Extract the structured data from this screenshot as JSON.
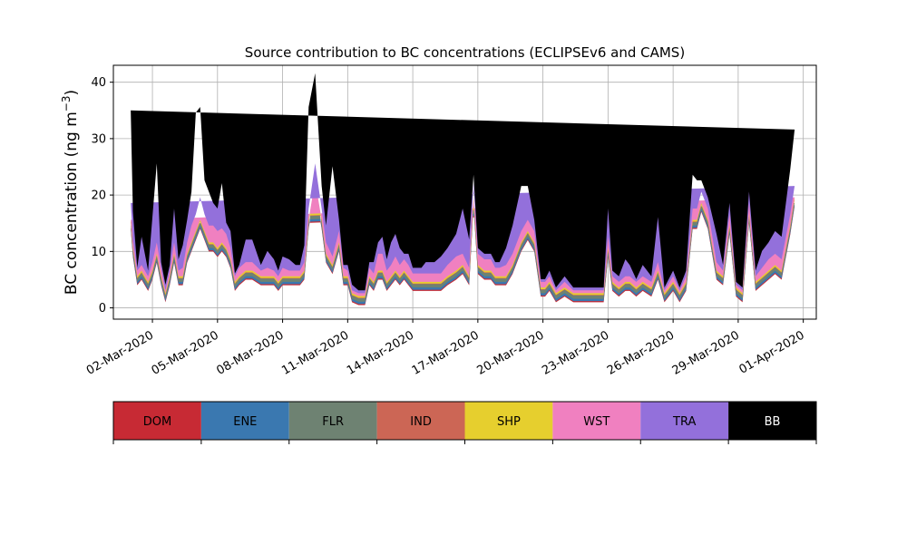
{
  "chart_data": {
    "type": "area",
    "stacked": true,
    "title": "Source contribution to BC concentrations (ECLIPSEv6 and CAMS)",
    "ylabel_main": "BC concentration (ng m",
    "ylabel_sup": "−3",
    "ylabel_close": ")",
    "ylim": [
      -2,
      43
    ],
    "yticks": [
      0,
      10,
      20,
      30,
      40
    ],
    "xlim_day": [
      -0.8,
      31.6
    ],
    "grid": true,
    "xtick_labels": [
      {
        "day": 1,
        "label": "02-Mar-2020"
      },
      {
        "day": 4,
        "label": "05-Mar-2020"
      },
      {
        "day": 7,
        "label": "08-Mar-2020"
      },
      {
        "day": 10,
        "label": "11-Mar-2020"
      },
      {
        "day": 13,
        "label": "14-Mar-2020"
      },
      {
        "day": 16,
        "label": "17-Mar-2020"
      },
      {
        "day": 19,
        "label": "20-Mar-2020"
      },
      {
        "day": 22,
        "label": "23-Mar-2020"
      },
      {
        "day": 25,
        "label": "26-Mar-2020"
      },
      {
        "day": 28,
        "label": "29-Mar-2020"
      },
      {
        "day": 31,
        "label": "01-Apr-2020"
      }
    ],
    "x_day": [
      0.0,
      0.1,
      0.3,
      0.5,
      0.8,
      1.0,
      1.2,
      1.4,
      1.6,
      1.8,
      2.0,
      2.2,
      2.4,
      2.6,
      2.8,
      3.0,
      3.2,
      3.4,
      3.6,
      3.8,
      4.0,
      4.2,
      4.4,
      4.6,
      4.8,
      5.0,
      5.3,
      5.6,
      6.0,
      6.3,
      6.6,
      6.8,
      7.0,
      7.3,
      7.6,
      7.8,
      8.0,
      8.2,
      8.5,
      8.8,
      9.0,
      9.3,
      9.6,
      9.8,
      10.0,
      10.2,
      10.5,
      10.8,
      11.0,
      11.2,
      11.4,
      11.6,
      11.8,
      12.0,
      12.2,
      12.4,
      12.6,
      12.8,
      13.0,
      13.2,
      13.4,
      13.6,
      13.8,
      14.0,
      14.3,
      14.6,
      15.0,
      15.3,
      15.6,
      15.8,
      16.0,
      16.3,
      16.6,
      16.8,
      17.0,
      17.3,
      17.6,
      18.0,
      18.3,
      18.6,
      18.9,
      19.1,
      19.3,
      19.6,
      20.0,
      20.4,
      20.8,
      21.2,
      21.5,
      21.8,
      22.0,
      22.2,
      22.5,
      22.8,
      23.0,
      23.3,
      23.6,
      24.0,
      24.3,
      24.6,
      25.0,
      25.3,
      25.6,
      25.9,
      26.1,
      26.3,
      26.6,
      27.0,
      27.3,
      27.6,
      27.9,
      28.2,
      28.5,
      28.8,
      29.1,
      29.4,
      29.7,
      30.0,
      30.2,
      30.4,
      30.6,
      30.8,
      31.0
    ],
    "series": [
      {
        "name": "DOM",
        "color": "#c72a34",
        "values": [
          14,
          9,
          4,
          5,
          3,
          5,
          8,
          4,
          1,
          4,
          8,
          4,
          4,
          8,
          10,
          12,
          14,
          12,
          10,
          10,
          9,
          10,
          9,
          7,
          3,
          4,
          5,
          5,
          4,
          4,
          4,
          3,
          4,
          4,
          4,
          4,
          5,
          14,
          21,
          14,
          8,
          6,
          10,
          4,
          4,
          1,
          0.5,
          0.5,
          4,
          3,
          5,
          5,
          3,
          4,
          5,
          4,
          5,
          4,
          3,
          3,
          3,
          3,
          3,
          3,
          3,
          4,
          5,
          6,
          4,
          18,
          6,
          5,
          5,
          4,
          4,
          4,
          6,
          10,
          12,
          10,
          2,
          2,
          3,
          1,
          2,
          1,
          1,
          1,
          1,
          1,
          9,
          3,
          2,
          3,
          3,
          2,
          3,
          2,
          5,
          1,
          3,
          1,
          3,
          14,
          14,
          17,
          14,
          5,
          4,
          13,
          2,
          1,
          15,
          3,
          4,
          5,
          6,
          5,
          9,
          13,
          18
        ]
      },
      {
        "name": "ENE",
        "color": "#3a78b0",
        "values": [
          0.2,
          0.2,
          0.2,
          0.2,
          0.2,
          0.2,
          0.2,
          0.2,
          0.2,
          0.2,
          0.2,
          0.2,
          0.2,
          0.2,
          0.2,
          0.2,
          0.2,
          0.2,
          0.2,
          0.2,
          0.2,
          0.2,
          0.2,
          0.2,
          0.2,
          0.2,
          0.2,
          0.2,
          0.2,
          0.2,
          0.2,
          0.2,
          0.2,
          0.2,
          0.2,
          0.2,
          0.2,
          0.2,
          0.2,
          0.2,
          0.2,
          0.2,
          0.2,
          0.2,
          0.2,
          0.2,
          0.2,
          0.2,
          0.2,
          0.2,
          0.2,
          0.2,
          0.2,
          0.2,
          0.2,
          0.2,
          0.2,
          0.2,
          0.2,
          0.2,
          0.2,
          0.2,
          0.2,
          0.2,
          0.2,
          0.2,
          0.2,
          0.2,
          0.2,
          0.2,
          0.2,
          0.2,
          0.2,
          0.2,
          0.2,
          0.2,
          0.2,
          0.2,
          0.2,
          0.2,
          0.2,
          0.2,
          0.2,
          0.2,
          0.2,
          0.2,
          0.2,
          0.2,
          0.2,
          0.2,
          0.2,
          0.2,
          0.2,
          0.2,
          0.2,
          0.2,
          0.2,
          0.2,
          0.2,
          0.2,
          0.2,
          0.2,
          0.2,
          0.2,
          0.2,
          0.2,
          0.2,
          0.2,
          0.2,
          0.2,
          0.2,
          0.2,
          0.2,
          0.2,
          0.2,
          0.2,
          0.2,
          0.2,
          0.2,
          0.2,
          0.2
        ]
      },
      {
        "name": "FLR",
        "color": "#6e8272",
        "values": [
          0.4,
          0.4,
          0.4,
          0.4,
          0.4,
          0.4,
          0.4,
          0.4,
          0.4,
          0.4,
          0.4,
          0.4,
          0.4,
          0.4,
          0.4,
          0.4,
          0.4,
          0.4,
          0.4,
          0.4,
          0.4,
          0.4,
          0.4,
          0.4,
          0.4,
          0.4,
          0.4,
          0.4,
          0.4,
          0.4,
          0.4,
          0.4,
          0.4,
          0.4,
          0.4,
          0.4,
          0.4,
          0.4,
          0.4,
          0.4,
          0.4,
          0.4,
          0.4,
          0.4,
          0.4,
          0.4,
          0.4,
          0.4,
          0.4,
          0.4,
          0.4,
          0.4,
          0.4,
          0.4,
          0.4,
          0.4,
          0.4,
          0.4,
          0.4,
          0.4,
          0.4,
          0.4,
          0.4,
          0.4,
          0.4,
          0.4,
          0.4,
          0.4,
          0.4,
          0.4,
          0.4,
          0.4,
          0.4,
          0.4,
          0.4,
          0.4,
          0.4,
          0.4,
          0.4,
          0.4,
          0.4,
          0.4,
          0.4,
          0.4,
          0.4,
          0.4,
          0.4,
          0.4,
          0.4,
          0.4,
          0.4,
          0.4,
          0.4,
          0.4,
          0.4,
          0.4,
          0.4,
          0.4,
          0.4,
          0.4,
          0.4,
          0.4,
          0.4,
          0.4,
          0.4,
          0.4,
          0.4,
          0.4,
          0.4,
          0.4,
          0.4,
          0.4,
          0.4,
          0.4,
          0.4,
          0.4,
          0.4,
          0.4,
          0.4,
          0.4,
          0.4
        ]
      },
      {
        "name": "IND",
        "color": "#cc6655",
        "values": [
          0.6,
          0.6,
          0.6,
          0.6,
          0.6,
          0.6,
          0.6,
          0.6,
          0.6,
          0.6,
          0.6,
          0.6,
          0.6,
          0.6,
          0.6,
          0.6,
          0.6,
          0.6,
          0.6,
          0.6,
          0.6,
          0.6,
          0.6,
          0.6,
          0.6,
          0.6,
          0.6,
          0.6,
          0.6,
          0.6,
          0.6,
          0.6,
          0.6,
          0.6,
          0.6,
          0.6,
          0.6,
          0.6,
          0.6,
          0.6,
          0.6,
          0.6,
          0.6,
          0.6,
          0.6,
          0.6,
          0.6,
          0.6,
          0.6,
          0.6,
          0.6,
          0.6,
          0.6,
          0.6,
          0.6,
          0.6,
          0.6,
          0.6,
          0.6,
          0.6,
          0.6,
          0.6,
          0.6,
          0.6,
          0.6,
          0.6,
          0.6,
          0.6,
          0.6,
          0.6,
          0.6,
          0.6,
          0.6,
          0.6,
          0.6,
          0.6,
          0.6,
          0.6,
          0.6,
          0.6,
          0.6,
          0.6,
          0.6,
          0.6,
          0.6,
          0.6,
          0.6,
          0.6,
          0.6,
          0.6,
          0.6,
          0.6,
          0.6,
          0.6,
          0.6,
          0.6,
          0.6,
          0.6,
          0.6,
          0.6,
          0.6,
          0.6,
          0.6,
          0.6,
          0.6,
          0.6,
          0.6,
          0.6,
          0.6,
          0.6,
          0.6,
          0.6,
          0.6,
          0.6,
          0.6,
          0.6,
          0.6,
          0.6,
          0.6,
          0.6,
          0.6
        ]
      },
      {
        "name": "SHP",
        "color": "#e6cf2e",
        "values": [
          0.1,
          0.1,
          0.1,
          0.1,
          0.1,
          0.1,
          0.1,
          0.1,
          0.1,
          0.1,
          0.1,
          0.1,
          0.1,
          0.1,
          0.1,
          0.1,
          0.1,
          0.1,
          0.1,
          0.1,
          0.1,
          0.1,
          0.1,
          0.1,
          0.1,
          0.1,
          0.1,
          0.1,
          0.1,
          0.1,
          0.1,
          0.1,
          0.1,
          0.1,
          0.1,
          0.1,
          0.1,
          0.1,
          0.1,
          0.1,
          0.1,
          0.1,
          0.1,
          0.1,
          0.1,
          0.1,
          0.1,
          0.1,
          0.1,
          0.1,
          0.1,
          0.1,
          0.1,
          0.1,
          0.1,
          0.1,
          0.1,
          0.1,
          0.1,
          0.1,
          0.1,
          0.1,
          0.1,
          0.1,
          0.1,
          0.1,
          0.1,
          0.1,
          0.1,
          0.1,
          0.1,
          0.1,
          0.1,
          0.1,
          0.1,
          0.1,
          0.1,
          0.1,
          0.1,
          0.1,
          0.1,
          0.1,
          0.1,
          0.1,
          0.1,
          0.1,
          0.1,
          0.1,
          0.1,
          0.1,
          0.1,
          0.1,
          0.1,
          0.1,
          0.1,
          0.1,
          0.1,
          0.1,
          0.1,
          0.1,
          0.1,
          0.1,
          0.1,
          0.1,
          0.1,
          0.1,
          0.1,
          0.1,
          0.1,
          0.1,
          0.1,
          0.1,
          0.1,
          0.1,
          0.1,
          0.1,
          0.1,
          0.1,
          0.1,
          0.1,
          0.1
        ]
      },
      {
        "name": "WST",
        "color": "#f080c0",
        "values": [
          0.3,
          0.3,
          0.3,
          0.3,
          0.3,
          0.3,
          0.3,
          0.3,
          0.3,
          0.3,
          0.3,
          0.3,
          0.3,
          0.3,
          0.3,
          0.3,
          0.3,
          0.3,
          0.3,
          0.3,
          0.3,
          0.3,
          0.3,
          0.3,
          0.3,
          0.3,
          0.3,
          0.3,
          0.3,
          0.3,
          0.3,
          0.3,
          0.3,
          0.3,
          0.3,
          0.3,
          0.3,
          0.3,
          0.3,
          0.3,
          0.3,
          0.3,
          0.3,
          0.3,
          0.3,
          0.3,
          0.3,
          0.3,
          0.3,
          0.3,
          0.3,
          0.3,
          0.3,
          0.3,
          0.3,
          0.3,
          0.3,
          0.3,
          0.3,
          0.3,
          0.3,
          0.3,
          0.3,
          0.3,
          0.3,
          0.3,
          0.3,
          0.3,
          0.3,
          0.3,
          0.3,
          0.3,
          0.3,
          0.3,
          0.3,
          0.3,
          0.3,
          0.3,
          0.3,
          0.3,
          0.3,
          0.3,
          0.3,
          0.3,
          0.3,
          0.3,
          0.3,
          0.3,
          0.3,
          0.3,
          0.3,
          0.3,
          0.3,
          0.3,
          0.3,
          0.3,
          0.3,
          0.3,
          0.3,
          0.3,
          0.3,
          0.3,
          0.3,
          0.3,
          0.3,
          0.3,
          0.3,
          0.3,
          0.3,
          0.3,
          0.3,
          0.3,
          0.3,
          0.3,
          0.3,
          0.3,
          0.3,
          0.3,
          0.3,
          0.3,
          0.3
        ]
      },
      {
        "name": "TRA",
        "color": "#9370db",
        "values": [
          3,
          1.5,
          1,
          1,
          1,
          1.5,
          2,
          1.5,
          0.5,
          1,
          2,
          1,
          1.5,
          2,
          3,
          3,
          4,
          3,
          3,
          3,
          3,
          2.5,
          2.5,
          2,
          1,
          1.5,
          1.5,
          1.5,
          1,
          1.5,
          1,
          1,
          1.5,
          1,
          1,
          1,
          1.5,
          2,
          3,
          2,
          2,
          1.5,
          2,
          1.5,
          1,
          0.5,
          0.5,
          0.5,
          1.5,
          1.5,
          3,
          3,
          2,
          2,
          2.5,
          2,
          2,
          2,
          1.5,
          1.5,
          1.5,
          1.5,
          1.5,
          1.5,
          1.5,
          2,
          2.5,
          2,
          1.5,
          2.5,
          2,
          2,
          2,
          1.5,
          1.5,
          2,
          2,
          2,
          2,
          2,
          1,
          1,
          1,
          0.5,
          1,
          0.5,
          0.5,
          0.5,
          0.5,
          0.5,
          2,
          1,
          1,
          1,
          1,
          1,
          1,
          1,
          1.5,
          0.5,
          1,
          0.5,
          1,
          2,
          2,
          2,
          2,
          1.5,
          1,
          2,
          0.5,
          0.5,
          2,
          1,
          1.5,
          2,
          2,
          2,
          2,
          2,
          2
        ]
      },
      {
        "name": "BB",
        "color": "#000000",
        "values": [
          16.4,
          5,
          0.5,
          5,
          1,
          8,
          14,
          1,
          1,
          1,
          6,
          2,
          4,
          4,
          6,
          18,
          16,
          6,
          6,
          4,
          4,
          8,
          2,
          3,
          0.5,
          0.5,
          4,
          4,
          1,
          3,
          2,
          1,
          2,
          2,
          1,
          1,
          3,
          18,
          16,
          4,
          3,
          16,
          2,
          0.5,
          1,
          1,
          0.5,
          0.5,
          1,
          2,
          2,
          3,
          2,
          4,
          4,
          3,
          1,
          2,
          1,
          1,
          1,
          2,
          2,
          2,
          3,
          3,
          4,
          8,
          5,
          1.5,
          1,
          1,
          1,
          1,
          1,
          3,
          5,
          8,
          6,
          2,
          0.5,
          0.5,
          1,
          0.5,
          1,
          0.5,
          0.5,
          0.5,
          0.5,
          0.5,
          5,
          1,
          1,
          3,
          2,
          0.5,
          2,
          1,
          8,
          0.5,
          1,
          0.5,
          1,
          6,
          5,
          2,
          2,
          5,
          1,
          2,
          0.5,
          0.5,
          2,
          1,
          3,
          3,
          4,
          4,
          6,
          8,
          10
        ]
      }
    ]
  }
}
